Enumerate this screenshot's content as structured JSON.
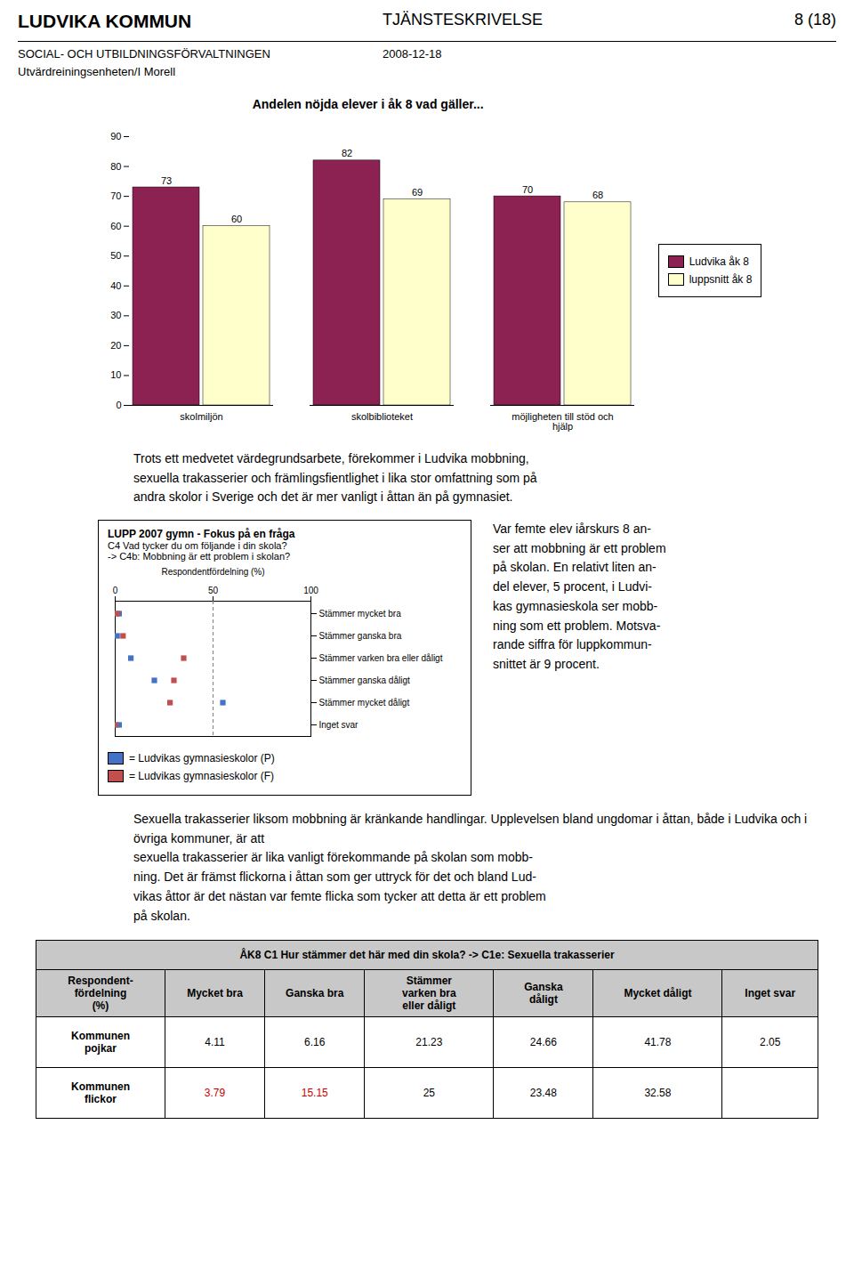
{
  "annotations": [
    "LUDVIKA KOMMUN",
    "TJÄNSTESKRIVELSE",
    "8 (18)",
    "SOCIAL- OCH UTBILDNINGSFÖRVALTNINGEN",
    "2008-12-18",
    "Utvärdreiningsenheten/I Morell",
    "Trots ett medvetet värdegrundsarbete, förekommer i Ludvika mobbning,\nsexuella trakasserier och främlingsfientlighet i lika stor omfattning som på\nandra skolor i Sverige och det är mer vanligt i åttan än på gymnasiet.",
    "Var femte elev iårskurs 8 an-\nser att mobbning är ett problem\npå skolan. En relativt liten an-\ndel elever, 5 procent, i Ludvi-\nkas gymnasieskola ser mobb-\nning som ett problem. Motsva-\nrande siffra för luppkommun-\nsnittet är 9 procent.",
    "Sexuella trakasserier liksom mobbning är kränkande handlingar. Upplevelsen bland ungdomar i åttan, både i Ludvika och i övriga kommuner, är att\nsexuella trakasserier är lika vanligt förekommande på skolan som mobb-\nning. Det är främst flickorna i åttan som ger uttryck för det och bland Lud-\nvikas åttor är det nästan var femte flicka som tycker att detta är ett problem\npå skolan."
  ],
  "chart_data": [
    {
      "type": "bar",
      "title": "Andelen nöjda elever i åk 8 vad gäller...",
      "categories": [
        "skolmiljön",
        "skolbiblioteket",
        "möjligheten till stöd och\nhjälp"
      ],
      "series": [
        {
          "name": "Ludvika åk 8",
          "color": "#8B2252",
          "values": [
            73,
            82,
            70
          ]
        },
        {
          "name": "luppsnitt åk 8",
          "color": "#FFFFCC",
          "values": [
            60,
            69,
            68
          ]
        }
      ],
      "ylim": [
        0,
        90
      ],
      "yticks": [
        0,
        10,
        20,
        30,
        40,
        50,
        60,
        70,
        80,
        90
      ],
      "data_labels": true,
      "legend": "right",
      "grid": false
    },
    {
      "type": "scatter",
      "title": "LUPP 2007 gymn - Fokus på en fråga",
      "subtitle": "C4 Vad tycker du om följande i din skola?\n-> C4b: Mobbning är ett problem i skolan?",
      "orientation": "horizontal",
      "categories": [
        "Stämmer mycket bra",
        "Stämmer ganska bra",
        "Stämmer varken bra eller dåligt",
        "Stämmer ganska dåligt",
        "Stämmer mycket dåligt",
        "Inget svar"
      ],
      "xlabel": "Respondentfördelning (%)",
      "xlim": [
        0,
        100
      ],
      "xticks": [
        0,
        50,
        100
      ],
      "marker": "square",
      "legend": "bottom",
      "grid": false,
      "series": [
        {
          "name": "= Ludvikas gymnasieskolor (P)",
          "color": "#4472C4",
          "values": [
            2,
            1,
            8,
            20,
            55,
            2
          ]
        },
        {
          "name": "= Ludvikas gymnasieskolor (F)",
          "color": "#C0504D",
          "values": [
            1,
            4,
            35,
            30,
            28,
            0
          ]
        }
      ],
      "annotations": [
        {
          "x": 50,
          "line_style": "dashed"
        }
      ]
    },
    {
      "type": "table",
      "title": "ÅK8 C1 Hur stämmer det här med din skola? -> C1e: Sexuella trakasserier",
      "columns": [
        "Respondent-\nfördelning\n(%)",
        "Mycket bra",
        "Ganska bra",
        "Stämmer\nvarken bra\neller dåligt",
        "Ganska\ndåligt",
        "Mycket dåligt",
        "Inget svar"
      ],
      "rows": [
        {
          "name": "Kommunen\npojkar",
          "values": [
            4.11,
            6.16,
            21.23,
            24.66,
            41.78,
            2.05
          ]
        },
        {
          "name": "Kommunen\nflickor",
          "values": [
            3.79,
            15.15,
            25,
            23.48,
            32.58,
            null
          ],
          "colors": [
            "#CC0000",
            "#CC0000",
            "#000000",
            "#000000",
            "#000000",
            "#000000"
          ]
        }
      ]
    }
  ]
}
